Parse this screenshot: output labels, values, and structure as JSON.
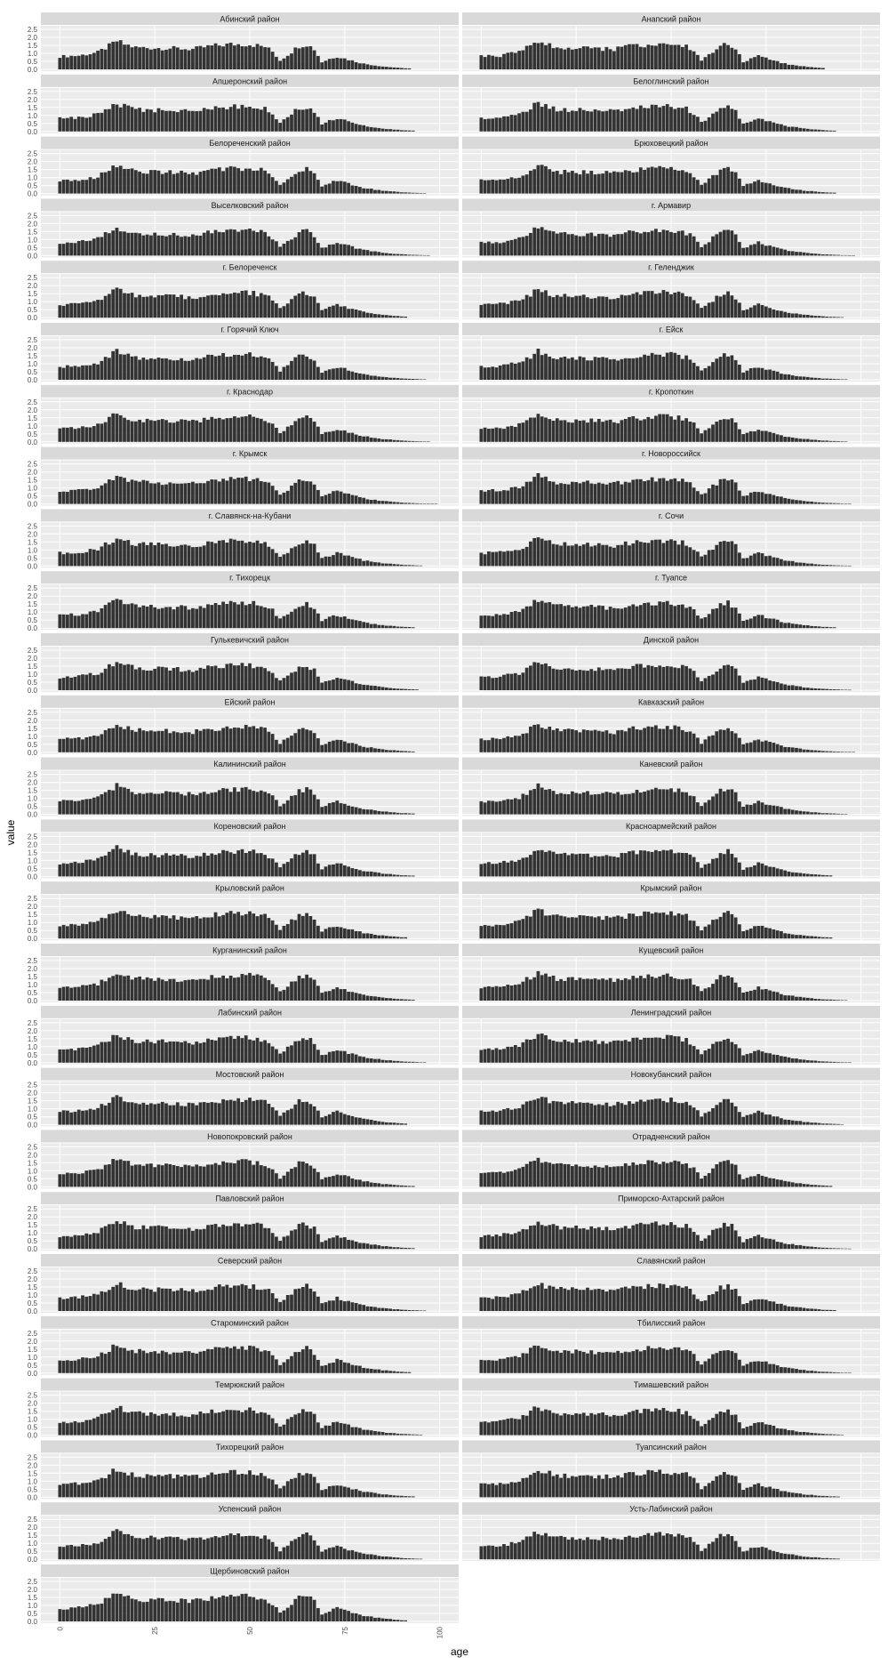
{
  "chart_data": {
    "type": "bar",
    "facet_layout": "wrap, 2 columns",
    "xlabel": "age",
    "ylabel": "value",
    "x_range": [
      0,
      100
    ],
    "x_ticks": [
      "0",
      "25",
      "50",
      "75",
      "100"
    ],
    "y_range": [
      0,
      2.5
    ],
    "y_ticks": [
      "0.0",
      "0.5",
      "1.0",
      "1.5",
      "2.0",
      "2.5"
    ],
    "grid": true,
    "colors": {
      "bar": "#333333",
      "panel": "#ebebeb",
      "grid": "#ffffff",
      "strip": "#d9d9d9"
    },
    "base_profile": [
      [
        0,
        0.8
      ],
      [
        5,
        0.85
      ],
      [
        10,
        1.05
      ],
      [
        13,
        1.45
      ],
      [
        15,
        1.75
      ],
      [
        17,
        1.55
      ],
      [
        20,
        1.35
      ],
      [
        30,
        1.3
      ],
      [
        35,
        1.25
      ],
      [
        40,
        1.45
      ],
      [
        45,
        1.55
      ],
      [
        50,
        1.55
      ],
      [
        54,
        1.4
      ],
      [
        56,
        1.1
      ],
      [
        58,
        0.55
      ],
      [
        60,
        0.9
      ],
      [
        63,
        1.45
      ],
      [
        65,
        1.55
      ],
      [
        67,
        1.25
      ],
      [
        69,
        0.45
      ],
      [
        71,
        0.65
      ],
      [
        73,
        0.8
      ],
      [
        76,
        0.6
      ],
      [
        80,
        0.35
      ],
      [
        85,
        0.18
      ],
      [
        90,
        0.08
      ],
      [
        95,
        0.03
      ],
      [
        100,
        0.01
      ]
    ],
    "panels": [
      {
        "name": "Абинский район",
        "max_age": 92
      },
      {
        "name": "Анапский район",
        "max_age": 90
      },
      {
        "name": "Апшеронский район",
        "max_age": 93
      },
      {
        "name": "Белоглинский район",
        "max_age": 93
      },
      {
        "name": "Белореченский район",
        "max_age": 96
      },
      {
        "name": "Брюховецкий район",
        "max_age": 93
      },
      {
        "name": "Выселковский район",
        "max_age": 97
      },
      {
        "name": "г. Армавир",
        "max_age": 98
      },
      {
        "name": "г. Белореченск",
        "max_age": 91
      },
      {
        "name": "г. Геленджик",
        "max_age": 95
      },
      {
        "name": "г. Горячий Ключ",
        "max_age": 96
      },
      {
        "name": "г. Ейск",
        "max_age": 96
      },
      {
        "name": "г. Краснодар",
        "max_age": 97
      },
      {
        "name": "г. Кропоткин",
        "max_age": 96
      },
      {
        "name": "г. Крымск",
        "max_age": 99
      },
      {
        "name": "г. Новороссийск",
        "max_age": 97
      },
      {
        "name": "г. Славянск-на-Кубани",
        "max_age": 95
      },
      {
        "name": "г. Сочи",
        "max_age": 97
      },
      {
        "name": "г. Тихорецк",
        "max_age": 93
      },
      {
        "name": "г. Туапсе",
        "max_age": 93
      },
      {
        "name": "Гулькевичский район",
        "max_age": 94
      },
      {
        "name": "Динской район",
        "max_age": 97
      },
      {
        "name": "Ейский район",
        "max_age": 93
      },
      {
        "name": "Кавказский район",
        "max_age": 98
      },
      {
        "name": "Калининский район",
        "max_age": 93
      },
      {
        "name": "Каневский район",
        "max_age": 96
      },
      {
        "name": "Кореновский район",
        "max_age": 93
      },
      {
        "name": "Красноармейский район",
        "max_age": 92
      },
      {
        "name": "Крыловский район",
        "max_age": 91
      },
      {
        "name": "Крымский район",
        "max_age": 92
      },
      {
        "name": "Курганинский район",
        "max_age": 93
      },
      {
        "name": "Кущевский район",
        "max_age": 96
      },
      {
        "name": "Лабинский район",
        "max_age": 96
      },
      {
        "name": "Ленинградский район",
        "max_age": 97
      },
      {
        "name": "Мостовский район",
        "max_age": 91
      },
      {
        "name": "Новокубанский район",
        "max_age": 95
      },
      {
        "name": "Новопокровский район",
        "max_age": 93
      },
      {
        "name": "Отрадненский район",
        "max_age": 92
      },
      {
        "name": "Павловский район",
        "max_age": 93
      },
      {
        "name": "Приморско-Ахтарский район",
        "max_age": 97
      },
      {
        "name": "Северский район",
        "max_age": 96
      },
      {
        "name": "Славянский район",
        "max_age": 93
      },
      {
        "name": "Староминский район",
        "max_age": 92
      },
      {
        "name": "Тбилисский район",
        "max_age": 97
      },
      {
        "name": "Темрюкский район",
        "max_age": 95
      },
      {
        "name": "Тимашевский район",
        "max_age": 95
      },
      {
        "name": "Тихорецкий район",
        "max_age": 93
      },
      {
        "name": "Туапсинский район",
        "max_age": 94
      },
      {
        "name": "Успенский район",
        "max_age": 95
      },
      {
        "name": "Усть-Лабинский район",
        "max_age": 94
      },
      {
        "name": "Щербиновский район",
        "max_age": 91
      }
    ]
  }
}
